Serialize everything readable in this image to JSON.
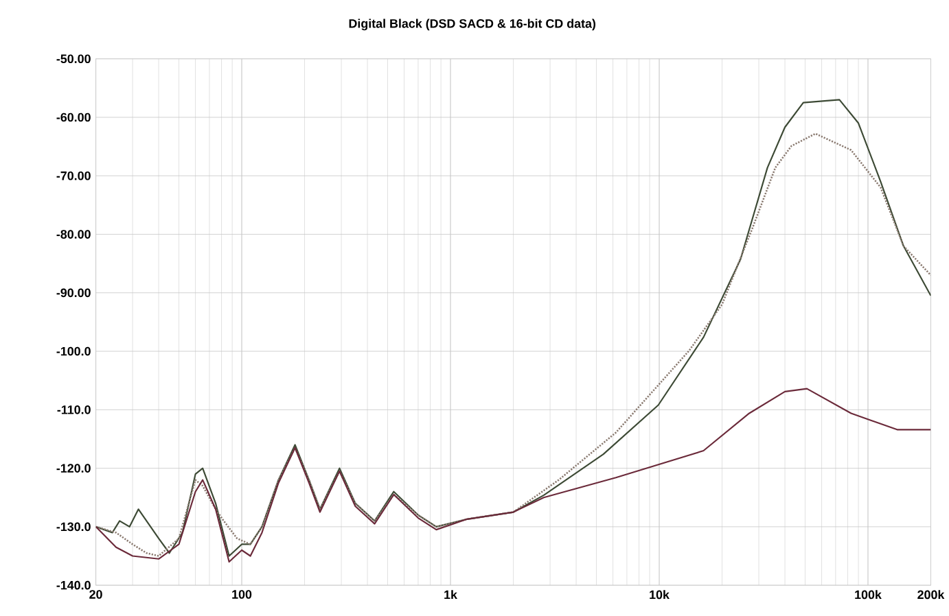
{
  "chart_data": {
    "type": "line",
    "title": "Digital Black (DSD SACD & 16-bit CD data)",
    "log": "x",
    "grid": true,
    "marker": "none",
    "xlim": [
      20,
      200000
    ],
    "ylim": [
      -140,
      -50
    ],
    "xticks": [
      20,
      100,
      {
        "value": 1000,
        "label": "1k"
      },
      {
        "value": 10000,
        "label": "10k"
      },
      {
        "value": 100000,
        "label": "100k"
      },
      {
        "value": 200000,
        "label": "200k"
      }
    ],
    "yticks": [
      {
        "value": -50,
        "label": "-50.00"
      },
      {
        "value": -60,
        "label": "-60.00"
      },
      {
        "value": -70,
        "label": "-70.00"
      },
      {
        "value": -80,
        "label": "-80.00"
      },
      {
        "value": -90,
        "label": "-90.00"
      },
      {
        "value": -100,
        "label": "-100.0"
      },
      {
        "value": -110,
        "label": "-110.0"
      },
      {
        "value": -120,
        "label": "-120.0"
      },
      {
        "value": -130,
        "label": "-130.0"
      },
      {
        "value": -140,
        "label": "-140.0"
      }
    ],
    "series": [
      {
        "color": "#3d4a35",
        "line_style": "solid",
        "x": [
          20,
          24,
          26,
          29,
          32,
          40,
          45,
          52,
          60,
          65,
          75,
          87,
          100,
          110,
          125,
          150,
          180,
          210,
          237,
          294,
          350,
          433,
          535,
          700,
          855,
          1200,
          2000,
          2800,
          5400,
          9900,
          16300,
          24500,
          33000,
          40000,
          49000,
          73000,
          90000,
          115000,
          148000,
          200000
        ],
        "values": [
          -130,
          -131,
          -129,
          -130,
          -127,
          -132,
          -134.5,
          -131,
          -121,
          -120,
          -126,
          -135,
          -133,
          -133,
          -130,
          -122,
          -116,
          -122,
          -127,
          -120,
          -126,
          -129,
          -124,
          -128,
          -130,
          -128.7,
          -127.5,
          -124.6,
          -117.6,
          -109.2,
          -97.6,
          -84.3,
          -68.6,
          -61.7,
          -57.5,
          -57,
          -61,
          -71,
          -82,
          -90.5
        ]
      },
      {
        "color": "#8a7a70",
        "line_style": "dotted",
        "x": [
          20,
          25,
          30,
          35,
          40,
          50,
          60,
          65,
          75,
          82,
          95,
          110,
          125,
          150,
          180,
          210,
          237,
          294,
          350,
          433,
          535,
          700,
          855,
          1200,
          2000,
          3300,
          6200,
          13900,
          20000,
          28000,
          36000,
          43000,
          56000,
          83000,
          115000,
          148000,
          200000
        ],
        "values": [
          -130,
          -131,
          -133,
          -134.5,
          -135,
          -132,
          -122,
          -123,
          -127,
          -129,
          -132,
          -133,
          -130,
          -122,
          -116.5,
          -122,
          -127,
          -120.5,
          -126,
          -129,
          -124.5,
          -128,
          -130,
          -128.7,
          -127.5,
          -122,
          -113.9,
          -99.9,
          -92,
          -78.9,
          -68.6,
          -64.9,
          -62.8,
          -65.6,
          -72,
          -82,
          -87
        ]
      },
      {
        "color": "#6b2a3a",
        "line_style": "solid",
        "x": [
          20,
          25,
          30,
          40,
          50,
          60,
          65,
          75,
          87,
          100,
          110,
          125,
          150,
          180,
          210,
          237,
          294,
          350,
          433,
          535,
          700,
          855,
          1200,
          2000,
          2800,
          6200,
          16300,
          27000,
          40000,
          51000,
          83000,
          138000,
          200000
        ],
        "values": [
          -130,
          -133.5,
          -135,
          -135.5,
          -133,
          -124,
          -122,
          -127,
          -136,
          -134,
          -135,
          -131,
          -122.5,
          -116.5,
          -122.5,
          -127.5,
          -120.5,
          -126.5,
          -129.5,
          -124.5,
          -128.5,
          -130.5,
          -128.7,
          -127.5,
          -125,
          -121.6,
          -117,
          -110.6,
          -106.9,
          -106.4,
          -110.6,
          -113.4,
          -113.4
        ]
      }
    ]
  }
}
